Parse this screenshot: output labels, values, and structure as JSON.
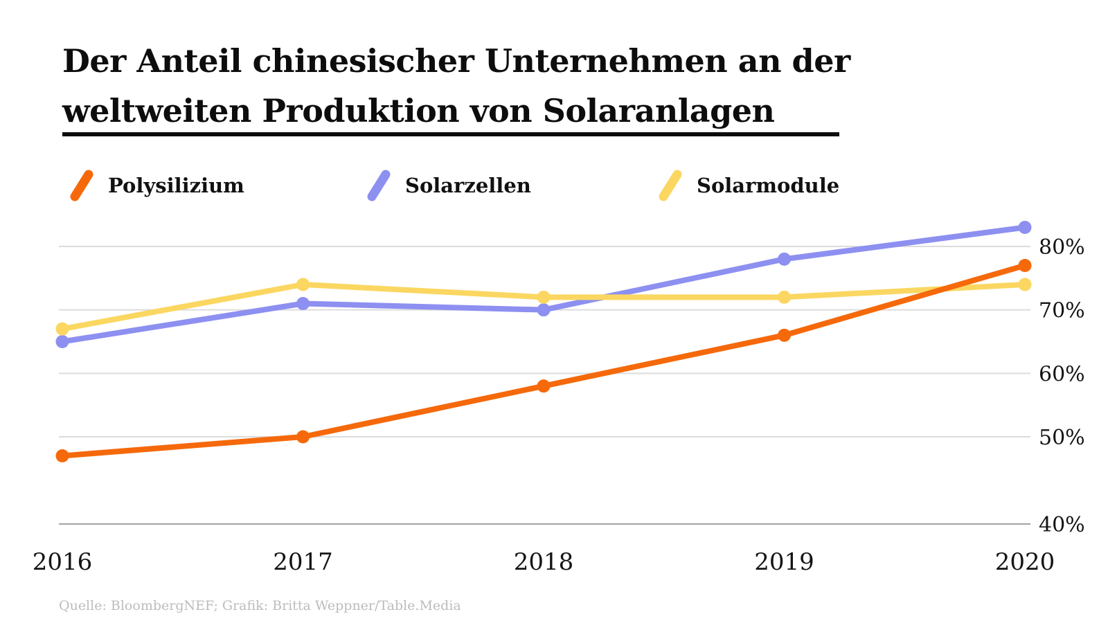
{
  "title": {
    "line1": "Der Anteil chinesischer Unternehmen an der",
    "line2": "weltweiten Produktion von Solaranlagen"
  },
  "legend": {
    "items": [
      {
        "label": "Polysilizium",
        "color": "#f5690b",
        "icon": "diagonal-stroke-icon"
      },
      {
        "label": "Solarzellen",
        "color": "#8d90f0",
        "icon": "diagonal-stroke-icon"
      },
      {
        "label": "Solarmodule",
        "color": "#fbd761",
        "icon": "diagonal-stroke-icon"
      }
    ]
  },
  "chart_data": {
    "type": "line",
    "title": "Der Anteil chinesischer Unternehmen an der weltweiten Produktion von Solaranlagen",
    "x": [
      2016,
      2017,
      2018,
      2019,
      2020
    ],
    "series": [
      {
        "name": "Polysilizium",
        "color": "#f5690b",
        "values": [
          47,
          50,
          58,
          66,
          77
        ]
      },
      {
        "name": "Solarzellen",
        "color": "#8d90f0",
        "values": [
          65,
          71,
          70,
          78,
          83
        ]
      },
      {
        "name": "Solarmodule",
        "color": "#fbd761",
        "values": [
          67,
          74,
          72,
          72,
          74
        ]
      }
    ],
    "unit": "%",
    "xlabel": "",
    "ylabel": "",
    "ylim": [
      40,
      85
    ],
    "y_ticks": [
      {
        "value": 80,
        "label": "80%"
      },
      {
        "value": 70,
        "label": "70%"
      },
      {
        "value": 60,
        "label": "60%"
      },
      {
        "value": 50,
        "label": "50%"
      },
      {
        "value": 40,
        "label": "40%"
      }
    ],
    "grid": "horizontal",
    "legend_position": "top",
    "y_axis_side": "right"
  },
  "footer": {
    "source": "Quelle: BloombergNEF; Grafik: Britta Weppner/Table.Media"
  }
}
